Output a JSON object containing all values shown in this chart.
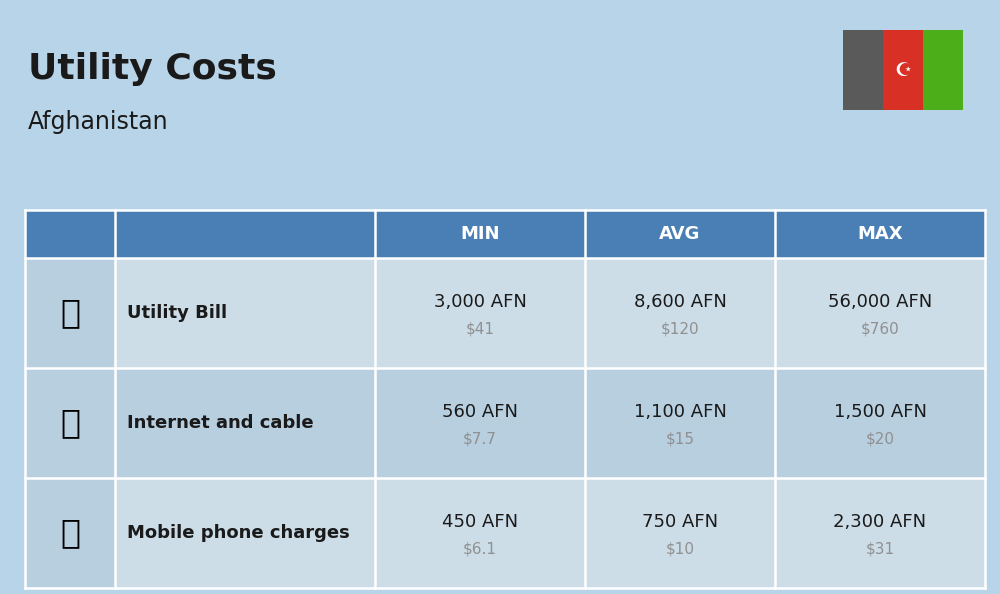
{
  "title": "Utility Costs",
  "subtitle": "Afghanistan",
  "background_color": "#b8d4e8",
  "header_bg_color": "#4a7fb5",
  "header_text_color": "#ffffff",
  "row_bg_color_1": "#ccdde8",
  "row_bg_color_2": "#b8cfe0",
  "icon_col_bg": "#b8cfe0",
  "header_labels": [
    "MIN",
    "AVG",
    "MAX"
  ],
  "rows": [
    {
      "name": "Utility Bill",
      "min_afn": "3,000 AFN",
      "min_usd": "$41",
      "avg_afn": "8,600 AFN",
      "avg_usd": "$120",
      "max_afn": "56,000 AFN",
      "max_usd": "$760"
    },
    {
      "name": "Internet and cable",
      "min_afn": "560 AFN",
      "min_usd": "$7.7",
      "avg_afn": "1,100 AFN",
      "avg_usd": "$15",
      "max_afn": "1,500 AFN",
      "max_usd": "$20"
    },
    {
      "name": "Mobile phone charges",
      "min_afn": "450 AFN",
      "min_usd": "$6.1",
      "avg_afn": "750 AFN",
      "avg_usd": "$10",
      "max_afn": "2,300 AFN",
      "max_usd": "$31"
    }
  ],
  "flag_colors": [
    "#5a5a5a",
    "#d93025",
    "#4caf1a"
  ],
  "title_fontsize": 26,
  "subtitle_fontsize": 17,
  "header_fontsize": 13,
  "row_name_fontsize": 13,
  "value_afn_fontsize": 13,
  "value_usd_fontsize": 11,
  "usd_color": "#909090",
  "text_color": "#1a1a1a"
}
